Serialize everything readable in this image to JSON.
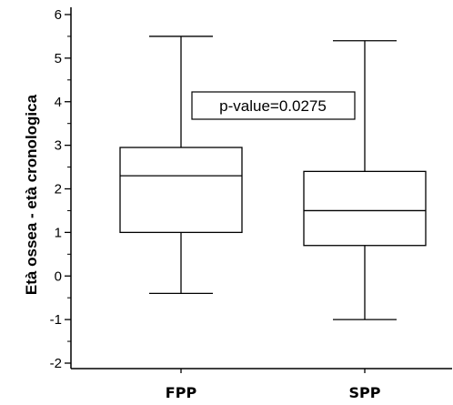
{
  "chart_data": {
    "type": "box",
    "ylabel": "Età ossea - età cronologica",
    "xlabel": "",
    "ylim": [
      -2.2,
      6.2
    ],
    "yticks": [
      "6",
      "5",
      "4",
      "3",
      "2",
      "1",
      "0",
      "-1",
      "-2"
    ],
    "categories": [
      "FPP",
      "SPP"
    ],
    "boxes": [
      {
        "category": "FPP",
        "whisker_low": -0.4,
        "q1": 1.0,
        "median": 2.3,
        "q3": 2.95,
        "whisker_high": 5.5
      },
      {
        "category": "SPP",
        "whisker_low": -1.0,
        "q1": 0.7,
        "median": 1.5,
        "q3": 2.4,
        "whisker_high": 5.4
      }
    ],
    "annotation": "p-value=0.0275",
    "grid": false,
    "colors": {
      "line": "#000000",
      "background": "#ffffff"
    }
  }
}
